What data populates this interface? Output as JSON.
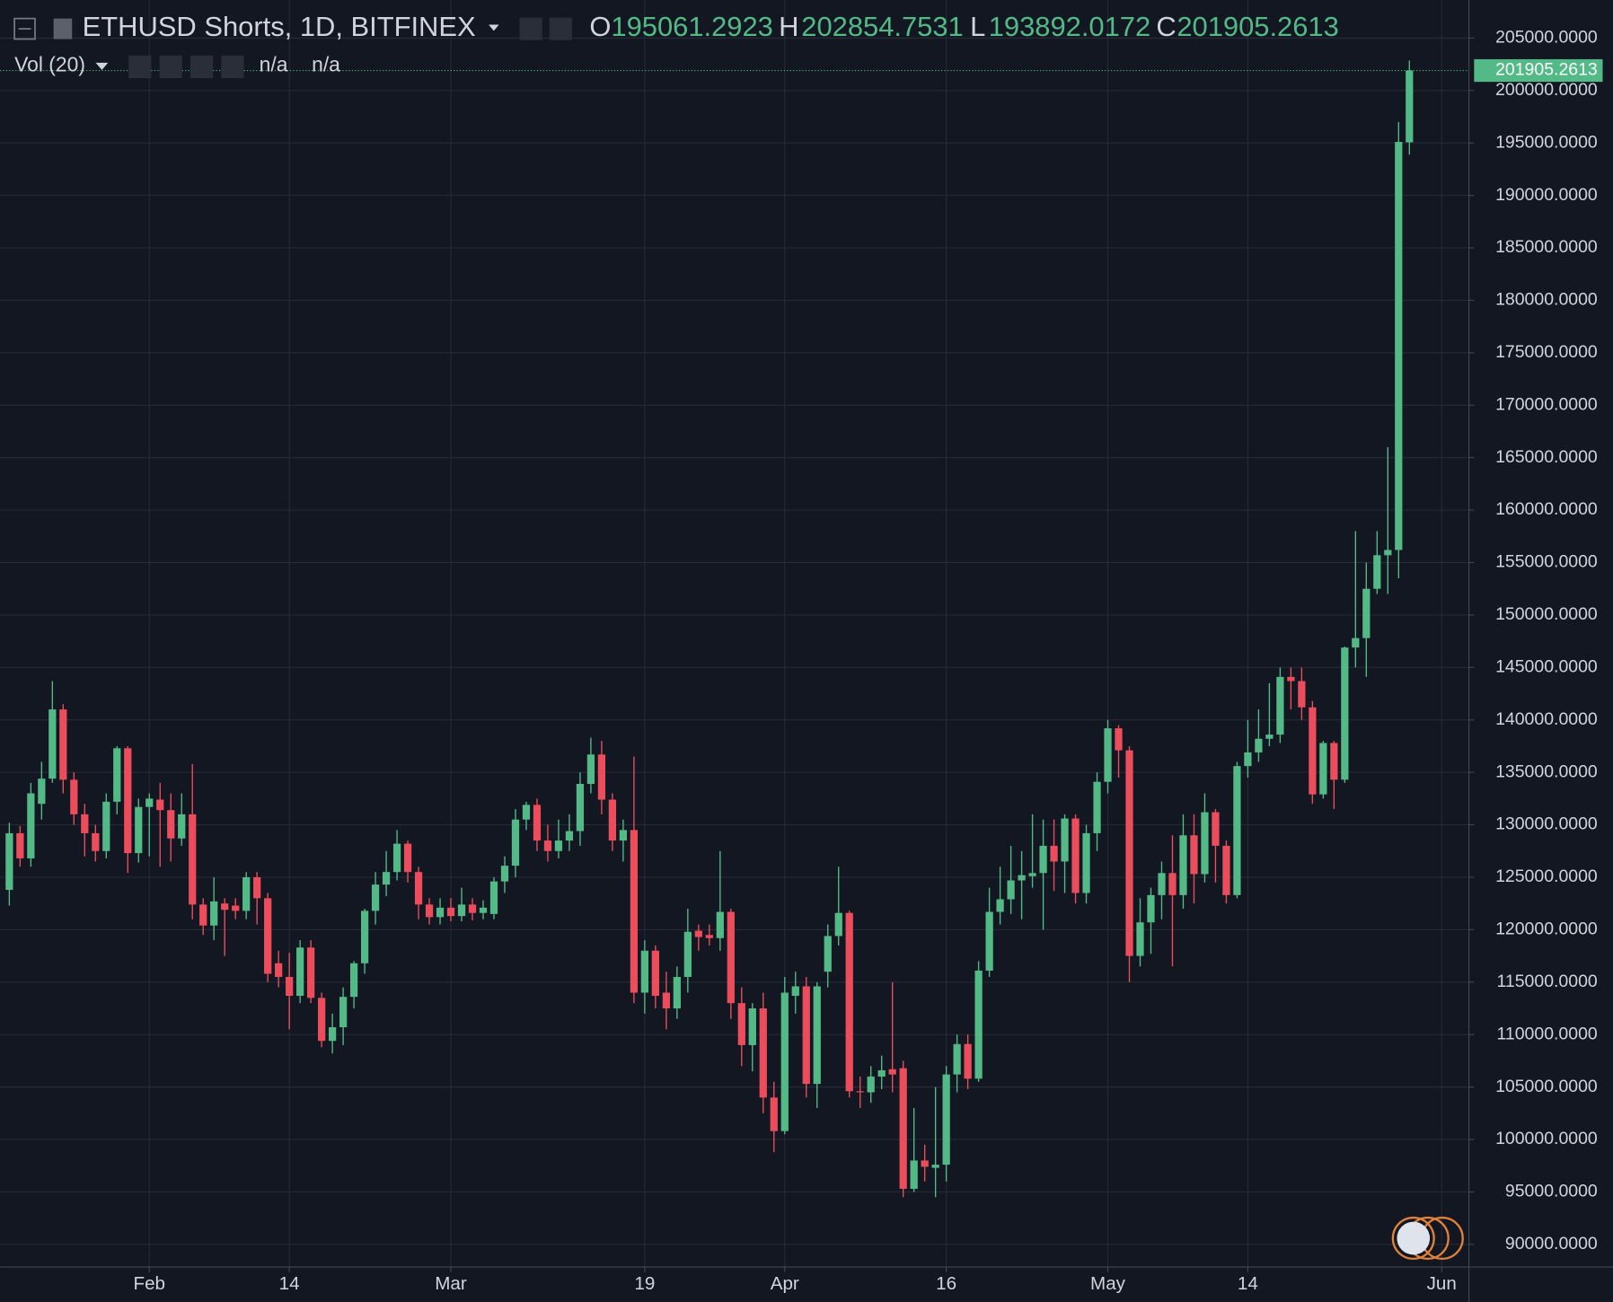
{
  "chart_data": {
    "type": "candlestick",
    "title": "ETHUSD Shorts, 1D, BITFINEX",
    "legend_labels": [
      "O",
      "H",
      "L",
      "C"
    ],
    "indicator": {
      "name": "Vol (20)",
      "values": [
        "n/a",
        "n/a"
      ]
    },
    "colors": {
      "up": "#53b987",
      "down": "#eb4d5c"
    },
    "grid": true,
    "ylim": [
      90000,
      205000
    ],
    "yticks": [
      {
        "value": 90000,
        "label": "90000.0000"
      },
      {
        "value": 95000,
        "label": "95000.0000"
      },
      {
        "value": 100000,
        "label": "100000.0000"
      },
      {
        "value": 105000,
        "label": "105000.0000"
      },
      {
        "value": 110000,
        "label": "110000.0000"
      },
      {
        "value": 115000,
        "label": "115000.0000"
      },
      {
        "value": 120000,
        "label": "120000.0000"
      },
      {
        "value": 125000,
        "label": "125000.0000"
      },
      {
        "value": 130000,
        "label": "130000.0000"
      },
      {
        "value": 135000,
        "label": "135000.0000"
      },
      {
        "value": 140000,
        "label": "140000.0000"
      },
      {
        "value": 145000,
        "label": "145000.0000"
      },
      {
        "value": 150000,
        "label": "150000.0000"
      },
      {
        "value": 155000,
        "label": "155000.0000"
      },
      {
        "value": 160000,
        "label": "160000.0000"
      },
      {
        "value": 165000,
        "label": "165000.0000"
      },
      {
        "value": 170000,
        "label": "170000.0000"
      },
      {
        "value": 175000,
        "label": "175000.0000"
      },
      {
        "value": 180000,
        "label": "180000.0000"
      },
      {
        "value": 185000,
        "label": "185000.0000"
      },
      {
        "value": 190000,
        "label": "190000.0000"
      },
      {
        "value": 195000,
        "label": "195000.0000"
      },
      {
        "value": 200000,
        "label": "200000.0000"
      },
      {
        "value": 205000,
        "label": "205000.0000"
      }
    ],
    "xticks": [
      {
        "value": 13,
        "label": "Feb"
      },
      {
        "value": 26,
        "label": "14"
      },
      {
        "value": 41,
        "label": "Mar"
      },
      {
        "value": 59,
        "label": "19"
      },
      {
        "value": 72,
        "label": "Apr"
      },
      {
        "value": 87,
        "label": "16"
      },
      {
        "value": 102,
        "label": "May"
      },
      {
        "value": 115,
        "label": "14"
      },
      {
        "value": 133,
        "label": "Jun"
      }
    ],
    "candles": [
      {
        "o": 123800,
        "h": 130200,
        "l": 122300,
        "c": 129200
      },
      {
        "o": 129200,
        "h": 129900,
        "l": 126000,
        "c": 126800
      },
      {
        "o": 126800,
        "h": 134000,
        "l": 126000,
        "c": 133000
      },
      {
        "o": 132000,
        "h": 136000,
        "l": 130500,
        "c": 134400
      },
      {
        "o": 134400,
        "h": 143700,
        "l": 134000,
        "c": 141000
      },
      {
        "o": 141000,
        "h": 141500,
        "l": 133000,
        "c": 134300
      },
      {
        "o": 134300,
        "h": 135000,
        "l": 130000,
        "c": 131000
      },
      {
        "o": 131000,
        "h": 132000,
        "l": 127000,
        "c": 129200
      },
      {
        "o": 129200,
        "h": 130000,
        "l": 126500,
        "c": 127500
      },
      {
        "o": 127500,
        "h": 133000,
        "l": 126800,
        "c": 132200
      },
      {
        "o": 132200,
        "h": 137500,
        "l": 131000,
        "c": 137300
      },
      {
        "o": 137300,
        "h": 137500,
        "l": 125400,
        "c": 127300
      },
      {
        "o": 127300,
        "h": 132500,
        "l": 126400,
        "c": 131700
      },
      {
        "o": 131700,
        "h": 133000,
        "l": 127000,
        "c": 132500
      },
      {
        "o": 132400,
        "h": 134000,
        "l": 126000,
        "c": 131400
      },
      {
        "o": 131400,
        "h": 133000,
        "l": 126500,
        "c": 128700
      },
      {
        "o": 128700,
        "h": 133000,
        "l": 128000,
        "c": 131000
      },
      {
        "o": 131000,
        "h": 135800,
        "l": 121000,
        "c": 122400
      },
      {
        "o": 122400,
        "h": 123000,
        "l": 119500,
        "c": 120400
      },
      {
        "o": 120400,
        "h": 125000,
        "l": 119000,
        "c": 122700
      },
      {
        "o": 122500,
        "h": 123000,
        "l": 117500,
        "c": 121900
      },
      {
        "o": 122300,
        "h": 123000,
        "l": 121000,
        "c": 121800
      },
      {
        "o": 121800,
        "h": 125500,
        "l": 121000,
        "c": 125000
      },
      {
        "o": 125000,
        "h": 125500,
        "l": 120500,
        "c": 123000
      },
      {
        "o": 123000,
        "h": 123500,
        "l": 115000,
        "c": 115800
      },
      {
        "o": 116800,
        "h": 118000,
        "l": 114500,
        "c": 115500
      },
      {
        "o": 115500,
        "h": 117800,
        "l": 110500,
        "c": 113700
      },
      {
        "o": 113700,
        "h": 119000,
        "l": 113000,
        "c": 118300
      },
      {
        "o": 118300,
        "h": 119000,
        "l": 113000,
        "c": 113500
      },
      {
        "o": 113500,
        "h": 114000,
        "l": 108800,
        "c": 109400
      },
      {
        "o": 109400,
        "h": 112000,
        "l": 108200,
        "c": 110700
      },
      {
        "o": 110700,
        "h": 114500,
        "l": 109000,
        "c": 113600
      },
      {
        "o": 113600,
        "h": 117000,
        "l": 112500,
        "c": 116800
      },
      {
        "o": 116800,
        "h": 122000,
        "l": 115800,
        "c": 121800
      },
      {
        "o": 121800,
        "h": 125500,
        "l": 120500,
        "c": 124300
      },
      {
        "o": 124300,
        "h": 127500,
        "l": 123200,
        "c": 125500
      },
      {
        "o": 125500,
        "h": 129500,
        "l": 124700,
        "c": 128200
      },
      {
        "o": 128200,
        "h": 128500,
        "l": 124500,
        "c": 125500
      },
      {
        "o": 125500,
        "h": 126000,
        "l": 121000,
        "c": 122400
      },
      {
        "o": 122400,
        "h": 123000,
        "l": 120500,
        "c": 121200
      },
      {
        "o": 121200,
        "h": 123000,
        "l": 120500,
        "c": 122100
      },
      {
        "o": 122100,
        "h": 123000,
        "l": 120800,
        "c": 121300
      },
      {
        "o": 121300,
        "h": 124000,
        "l": 120800,
        "c": 122400
      },
      {
        "o": 122400,
        "h": 123000,
        "l": 120900,
        "c": 121600
      },
      {
        "o": 121600,
        "h": 122800,
        "l": 121000,
        "c": 122100
      },
      {
        "o": 121500,
        "h": 125000,
        "l": 121000,
        "c": 124600
      },
      {
        "o": 124600,
        "h": 127000,
        "l": 123500,
        "c": 126100
      },
      {
        "o": 126100,
        "h": 131500,
        "l": 125000,
        "c": 130500
      },
      {
        "o": 130500,
        "h": 132200,
        "l": 129500,
        "c": 131900
      },
      {
        "o": 131900,
        "h": 132500,
        "l": 127500,
        "c": 128500
      },
      {
        "o": 128500,
        "h": 130000,
        "l": 126500,
        "c": 127500
      },
      {
        "o": 127500,
        "h": 130500,
        "l": 126800,
        "c": 128500
      },
      {
        "o": 128500,
        "h": 131000,
        "l": 127500,
        "c": 129400
      },
      {
        "o": 129400,
        "h": 135000,
        "l": 128000,
        "c": 133900
      },
      {
        "o": 133900,
        "h": 138300,
        "l": 133000,
        "c": 136700
      },
      {
        "o": 136700,
        "h": 138000,
        "l": 131000,
        "c": 132400
      },
      {
        "o": 132400,
        "h": 133000,
        "l": 127500,
        "c": 128500
      },
      {
        "o": 128500,
        "h": 130500,
        "l": 126500,
        "c": 129500
      },
      {
        "o": 129500,
        "h": 136500,
        "l": 113000,
        "c": 114000
      },
      {
        "o": 114000,
        "h": 119000,
        "l": 112000,
        "c": 118000
      },
      {
        "o": 118000,
        "h": 118500,
        "l": 112500,
        "c": 113700
      },
      {
        "o": 114000,
        "h": 116000,
        "l": 110500,
        "c": 112500
      },
      {
        "o": 112500,
        "h": 116500,
        "l": 111500,
        "c": 115500
      },
      {
        "o": 115500,
        "h": 122000,
        "l": 114000,
        "c": 119800
      },
      {
        "o": 119900,
        "h": 120500,
        "l": 118000,
        "c": 119300
      },
      {
        "o": 119500,
        "h": 120500,
        "l": 118500,
        "c": 119200
      },
      {
        "o": 119200,
        "h": 127500,
        "l": 118000,
        "c": 121700
      },
      {
        "o": 121700,
        "h": 122000,
        "l": 111500,
        "c": 113000
      },
      {
        "o": 113000,
        "h": 114500,
        "l": 107000,
        "c": 109000
      },
      {
        "o": 109000,
        "h": 113000,
        "l": 106500,
        "c": 112500
      },
      {
        "o": 112500,
        "h": 114000,
        "l": 102500,
        "c": 104000
      },
      {
        "o": 104000,
        "h": 105500,
        "l": 98800,
        "c": 100800
      },
      {
        "o": 100800,
        "h": 115500,
        "l": 100500,
        "c": 114000
      },
      {
        "o": 113700,
        "h": 116000,
        "l": 112000,
        "c": 114600
      },
      {
        "o": 114600,
        "h": 115500,
        "l": 104000,
        "c": 105300
      },
      {
        "o": 105300,
        "h": 115000,
        "l": 103000,
        "c": 114600
      },
      {
        "o": 116000,
        "h": 120500,
        "l": 114500,
        "c": 119400
      },
      {
        "o": 119400,
        "h": 126000,
        "l": 118500,
        "c": 121600
      },
      {
        "o": 121600,
        "h": 121800,
        "l": 104000,
        "c": 104600
      },
      {
        "o": 104600,
        "h": 106000,
        "l": 103000,
        "c": 104500
      },
      {
        "o": 104500,
        "h": 107000,
        "l": 103500,
        "c": 106000
      },
      {
        "o": 106000,
        "h": 108000,
        "l": 104800,
        "c": 106600
      },
      {
        "o": 106700,
        "h": 115000,
        "l": 104500,
        "c": 106200
      },
      {
        "o": 106800,
        "h": 107500,
        "l": 94500,
        "c": 95300
      },
      {
        "o": 95300,
        "h": 103000,
        "l": 95000,
        "c": 98000
      },
      {
        "o": 98000,
        "h": 99500,
        "l": 96000,
        "c": 97400
      },
      {
        "o": 97300,
        "h": 105000,
        "l": 94500,
        "c": 97600
      },
      {
        "o": 97600,
        "h": 107000,
        "l": 96000,
        "c": 106200
      },
      {
        "o": 106200,
        "h": 110000,
        "l": 104500,
        "c": 109100
      },
      {
        "o": 109100,
        "h": 110000,
        "l": 104800,
        "c": 105800
      },
      {
        "o": 105800,
        "h": 117000,
        "l": 105500,
        "c": 116100
      },
      {
        "o": 116100,
        "h": 124000,
        "l": 115500,
        "c": 121700
      },
      {
        "o": 121700,
        "h": 126000,
        "l": 120500,
        "c": 122900
      },
      {
        "o": 122900,
        "h": 128000,
        "l": 121500,
        "c": 124700
      },
      {
        "o": 124700,
        "h": 127500,
        "l": 121000,
        "c": 125200
      },
      {
        "o": 125100,
        "h": 131000,
        "l": 124000,
        "c": 125400
      },
      {
        "o": 125400,
        "h": 130500,
        "l": 120000,
        "c": 128000
      },
      {
        "o": 128000,
        "h": 130500,
        "l": 123700,
        "c": 126500
      },
      {
        "o": 126500,
        "h": 131000,
        "l": 123500,
        "c": 130600
      },
      {
        "o": 130600,
        "h": 131000,
        "l": 122500,
        "c": 123500
      },
      {
        "o": 123500,
        "h": 130000,
        "l": 122500,
        "c": 129200
      },
      {
        "o": 129200,
        "h": 135000,
        "l": 127500,
        "c": 134100
      },
      {
        "o": 134100,
        "h": 140000,
        "l": 133000,
        "c": 139200
      },
      {
        "o": 139200,
        "h": 139500,
        "l": 134500,
        "c": 137100
      },
      {
        "o": 137100,
        "h": 137500,
        "l": 115000,
        "c": 117500
      },
      {
        "o": 117500,
        "h": 123000,
        "l": 116500,
        "c": 120700
      },
      {
        "o": 120700,
        "h": 124000,
        "l": 117700,
        "c": 123300
      },
      {
        "o": 123300,
        "h": 126500,
        "l": 121000,
        "c": 125400
      },
      {
        "o": 125400,
        "h": 129000,
        "l": 116500,
        "c": 123300
      },
      {
        "o": 123300,
        "h": 131000,
        "l": 122000,
        "c": 129000
      },
      {
        "o": 129000,
        "h": 131000,
        "l": 122500,
        "c": 125300
      },
      {
        "o": 125300,
        "h": 133000,
        "l": 124500,
        "c": 131200
      },
      {
        "o": 131200,
        "h": 131500,
        "l": 124500,
        "c": 128000
      },
      {
        "o": 128000,
        "h": 128500,
        "l": 122500,
        "c": 123300
      },
      {
        "o": 123300,
        "h": 136000,
        "l": 123000,
        "c": 135600
      },
      {
        "o": 135600,
        "h": 140000,
        "l": 134500,
        "c": 136900
      },
      {
        "o": 136900,
        "h": 141000,
        "l": 136000,
        "c": 138200
      },
      {
        "o": 138200,
        "h": 143500,
        "l": 137500,
        "c": 138600
      },
      {
        "o": 138600,
        "h": 145000,
        "l": 137800,
        "c": 144100
      },
      {
        "o": 144100,
        "h": 145000,
        "l": 141000,
        "c": 143700
      },
      {
        "o": 143700,
        "h": 145000,
        "l": 140000,
        "c": 141200
      },
      {
        "o": 141200,
        "h": 141800,
        "l": 132000,
        "c": 132900
      },
      {
        "o": 132900,
        "h": 138000,
        "l": 132500,
        "c": 137800
      },
      {
        "o": 137800,
        "h": 138000,
        "l": 131500,
        "c": 134300
      },
      {
        "o": 134300,
        "h": 147000,
        "l": 134000,
        "c": 146900
      },
      {
        "o": 146900,
        "h": 158000,
        "l": 145000,
        "c": 147800
      },
      {
        "o": 147800,
        "h": 155000,
        "l": 144100,
        "c": 152500
      },
      {
        "o": 152500,
        "h": 158000,
        "l": 152000,
        "c": 155700
      },
      {
        "o": 155700,
        "h": 166000,
        "l": 152000,
        "c": 156200
      },
      {
        "o": 156200,
        "h": 197000,
        "l": 153500,
        "c": 195100
      },
      {
        "o": 195061.2923,
        "h": 202854.7531,
        "l": 193892.0172,
        "c": 201905.2613
      }
    ]
  }
}
